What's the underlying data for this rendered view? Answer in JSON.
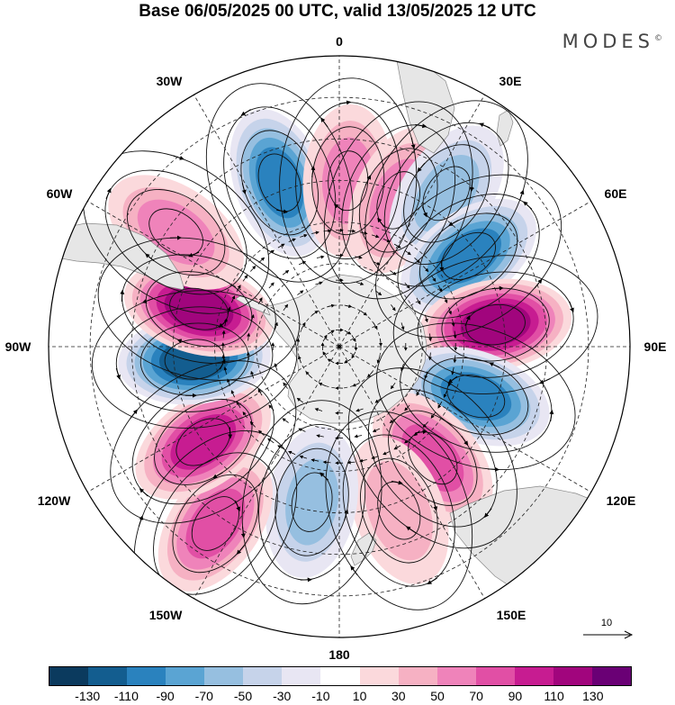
{
  "title": "Base 06/05/2025 00 UTC, valid 13/05/2025 12 UTC",
  "brand": "MODES",
  "brand_mark": "©",
  "lon_labels": {
    "top": "0",
    "tr": "30E",
    "rt": "60E",
    "right": "90E",
    "rb": "120E",
    "br": "150E",
    "bottom": "180",
    "bl": "150W",
    "lb": "120W",
    "left": "90W",
    "lt": "60W",
    "tl": "30W"
  },
  "reference_vector": "10",
  "colorbar": {
    "colors": [
      "#0b3a5e",
      "#135d8f",
      "#2a82be",
      "#5aa4d3",
      "#96bfe0",
      "#c6d3ea",
      "#e8e6f3",
      "#ffffff",
      "#fbd9dc",
      "#f6b1c3",
      "#ef83ba",
      "#e14fa5",
      "#c71c91",
      "#a1057d",
      "#6a0075"
    ],
    "labels": [
      "-130",
      "-110",
      "-90",
      "-70",
      "-50",
      "-30",
      "-10",
      "10",
      "30",
      "50",
      "70",
      "90",
      "110",
      "130"
    ]
  },
  "anomaly_centers": [
    {
      "lon": -20,
      "lat": -48,
      "value": -75
    },
    {
      "lon": 3,
      "lat": -50,
      "value": 45
    },
    {
      "lon": 22,
      "lat": -52,
      "value": 35
    },
    {
      "lon": 35,
      "lat": -45,
      "value": -35
    },
    {
      "lon": 55,
      "lat": -52,
      "value": -85
    },
    {
      "lon": 82,
      "lat": -52,
      "value": 95
    },
    {
      "lon": 110,
      "lat": -55,
      "value": -75
    },
    {
      "lon": 140,
      "lat": -55,
      "value": 55
    },
    {
      "lon": 160,
      "lat": -48,
      "value": 25
    },
    {
      "lon": -170,
      "lat": -52,
      "value": -35
    },
    {
      "lon": -145,
      "lat": -38,
      "value": 60
    },
    {
      "lon": -125,
      "lat": -50,
      "value": 75
    },
    {
      "lon": -95,
      "lat": -55,
      "value": -95
    },
    {
      "lon": -75,
      "lat": -55,
      "value": 110
    },
    {
      "lon": -55,
      "lat": -42,
      "value": 45
    }
  ]
}
